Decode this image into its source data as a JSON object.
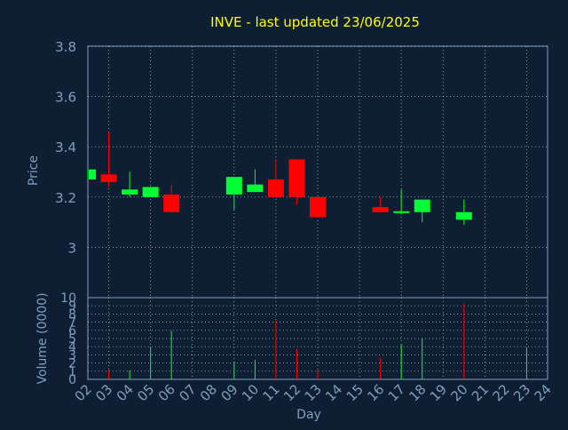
{
  "title": "INVE - last updated 23/06/2025",
  "colors": {
    "background": "#0f1f33",
    "title": "#ffff00",
    "axis_text": "#7f9fbf",
    "up": "#00ff33",
    "down": "#ff0000",
    "grid": "#ffffff"
  },
  "chart_data": [
    {
      "type": "candlestick",
      "ylabel": "Price",
      "ylim": [
        2.8,
        3.8
      ],
      "yticks": [
        "3.8",
        "3.6",
        "3.4",
        "3.2",
        "3"
      ],
      "ytick_values": [
        3.8,
        3.6,
        3.4,
        3.2,
        3.0
      ],
      "x": [
        0,
        1,
        2,
        3,
        4,
        7,
        8,
        9,
        10,
        11,
        14,
        15,
        16,
        18
      ],
      "open": [
        3.27,
        3.29,
        3.21,
        3.2,
        3.21,
        3.21,
        3.22,
        3.27,
        3.35,
        3.2,
        3.16,
        3.14,
        3.14,
        3.11
      ],
      "high": [
        3.31,
        3.46,
        3.3,
        3.24,
        3.25,
        3.27,
        3.31,
        3.35,
        3.35,
        3.2,
        3.2,
        3.23,
        3.19,
        3.19
      ],
      "low": [
        3.27,
        3.24,
        3.2,
        3.2,
        3.14,
        3.15,
        3.22,
        3.2,
        3.17,
        3.12,
        3.15,
        3.13,
        3.1,
        3.09
      ],
      "close": [
        3.31,
        3.26,
        3.23,
        3.24,
        3.14,
        3.28,
        3.25,
        3.2,
        3.2,
        3.12,
        3.14,
        3.14,
        3.19,
        3.14
      ],
      "grid": true
    },
    {
      "type": "bar",
      "ylabel": "Volume (0000)",
      "xlabel": "Day",
      "ylim": [
        0,
        10
      ],
      "yticks": [
        "10",
        "9",
        "8",
        "7",
        "6",
        "5",
        "4",
        "3",
        "2",
        "1",
        "0"
      ],
      "categories": [
        "02",
        "03",
        "04",
        "05",
        "06",
        "07",
        "08",
        "09",
        "10",
        "11",
        "12",
        "13",
        "14",
        "15",
        "16",
        "17",
        "18",
        "19",
        "20",
        "21",
        "22",
        "23",
        "24"
      ],
      "x": [
        1,
        2,
        3,
        4,
        7,
        8,
        9,
        10,
        11,
        14,
        15,
        16,
        18,
        21
      ],
      "values": [
        1.1,
        1.1,
        4.0,
        5.9,
        2.2,
        2.4,
        7.2,
        3.7,
        1.1,
        2.6,
        4.3,
        5.0,
        9.3,
        3.8
      ],
      "direction": [
        "down",
        "up",
        "up",
        "up",
        "up",
        "up",
        "down",
        "down",
        "down",
        "down",
        "up",
        "up",
        "down",
        "up"
      ],
      "grid": true
    }
  ]
}
